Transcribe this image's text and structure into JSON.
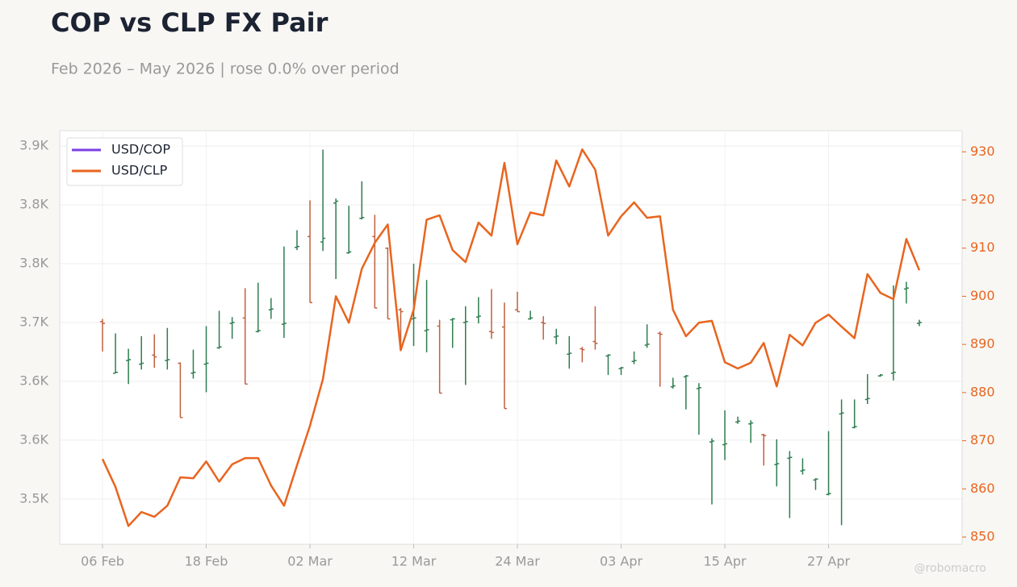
{
  "chart_data": {
    "type": "ohlc",
    "title": "COP vs CLP FX Pair",
    "subtitle": "Feb 2026 – May 2026 | rose 0.0% over period",
    "watermark": "@robomacro",
    "categories": [
      "06 Feb",
      null,
      null,
      null,
      null,
      null,
      null,
      null,
      "18 Feb",
      null,
      null,
      null,
      null,
      null,
      null,
      null,
      "02 Mar",
      null,
      null,
      null,
      null,
      null,
      null,
      null,
      "12 Mar",
      null,
      null,
      null,
      null,
      null,
      null,
      null,
      "24 Mar",
      null,
      null,
      null,
      null,
      null,
      null,
      null,
      "03 Apr",
      null,
      null,
      null,
      null,
      null,
      null,
      null,
      "15 Apr",
      null,
      null,
      null,
      null,
      null,
      null,
      null,
      "27 Apr",
      null,
      null,
      null,
      null,
      null,
      null,
      null
    ],
    "series": [
      {
        "name": "USD/COP",
        "type": "ohlc",
        "axis": "y",
        "color": "#7b3fe4",
        "up_color": "#2e7d4f",
        "down_color": "#c0603f",
        "open": [
          3696,
          3639,
          3653,
          3649,
          3659,
          3653,
          3650,
          3639,
          3649,
          3667,
          3694,
          3700,
          3685,
          3709,
          3693,
          3778,
          3790,
          3784,
          3827,
          3772,
          3810,
          3790,
          3777,
          3709,
          3699,
          3686,
          3691,
          3698,
          3695,
          3701,
          3685,
          3690,
          3709,
          3699,
          3695,
          3679,
          3660,
          3666,
          3674,
          3658,
          3644,
          3652,
          3670,
          3683,
          3624,
          3635,
          3622,
          3563,
          3560,
          3585,
          3583,
          3571,
          3538,
          3545,
          3531,
          3521,
          3505,
          3594,
          3579,
          3610,
          3636,
          3639,
          3732,
          3694
        ],
        "high": [
          3699,
          3683,
          3666,
          3680,
          3682,
          3689,
          3651,
          3665,
          3691,
          3708,
          3701,
          3733,
          3739,
          3722,
          3779,
          3797,
          3830,
          3886,
          3832,
          3824,
          3851,
          3814,
          3778,
          3711,
          3760,
          3742,
          3698,
          3700,
          3713,
          3723,
          3732,
          3717,
          3729,
          3708,
          3702,
          3688,
          3680,
          3668,
          3713,
          3660,
          3646,
          3663,
          3693,
          3685,
          3634,
          3637,
          3628,
          3567,
          3598,
          3591,
          3587,
          3572,
          3566,
          3553,
          3545,
          3523,
          3575,
          3610,
          3610,
          3638,
          3638,
          3736,
          3740,
          3698
        ],
        "low": [
          3663,
          3639,
          3627,
          3643,
          3645,
          3643,
          3590,
          3633,
          3618,
          3666,
          3677,
          3627,
          3684,
          3699,
          3678,
          3775,
          3717,
          3774,
          3743,
          3771,
          3809,
          3711,
          3699,
          3665,
          3669,
          3662,
          3617,
          3667,
          3626,
          3694,
          3677,
          3600,
          3707,
          3698,
          3676,
          3671,
          3644,
          3651,
          3665,
          3637,
          3637,
          3649,
          3667,
          3624,
          3622,
          3599,
          3571,
          3494,
          3543,
          3583,
          3562,
          3537,
          3514,
          3479,
          3527,
          3510,
          3504,
          3471,
          3578,
          3605,
          3635,
          3631,
          3716,
          3691
        ],
        "close": [
          3694,
          3640,
          3654,
          3650,
          3657,
          3654,
          3590,
          3640,
          3650,
          3668,
          3695,
          3627,
          3686,
          3710,
          3694,
          3779,
          3717,
          3788,
          3829,
          3773,
          3811,
          3711,
          3699,
          3707,
          3700,
          3687,
          3617,
          3699,
          3696,
          3702,
          3684,
          3600,
          3707,
          3700,
          3694,
          3680,
          3661,
          3665,
          3672,
          3659,
          3645,
          3653,
          3671,
          3682,
          3625,
          3636,
          3623,
          3564,
          3561,
          3586,
          3584,
          3570,
          3539,
          3546,
          3532,
          3522,
          3506,
          3595,
          3580,
          3611,
          3637,
          3640,
          3733,
          3695
        ]
      },
      {
        "name": "USD/CLP",
        "type": "line",
        "axis": "y2",
        "color": "#e8651f",
        "values": [
          866.2,
          860.4,
          852.3,
          855.2,
          854.2,
          856.5,
          862.4,
          862.2,
          865.7,
          861.5,
          865.1,
          866.4,
          866.4,
          860.7,
          856.5,
          864.9,
          873.1,
          882.8,
          900.0,
          894.5,
          905.7,
          911.1,
          914.9,
          888.8,
          897.2,
          915.9,
          916.8,
          909.6,
          907.1,
          915.3,
          912.6,
          927.7,
          910.8,
          917.4,
          916.8,
          928.2,
          922.8,
          930.5,
          926.3,
          912.6,
          916.6,
          919.5,
          916.3,
          916.6,
          897.2,
          891.7,
          894.5,
          894.9,
          886.3,
          885.0,
          886.2,
          890.3,
          881.3,
          892.0,
          889.8,
          894.5,
          896.2,
          893.7,
          891.3,
          904.6,
          900.7,
          899.4,
          911.9,
          905.4
        ]
      }
    ],
    "ylim": [
      3450,
      3907
    ],
    "yticks": [
      {
        "value": 3500,
        "label": "3.5K"
      },
      {
        "value": 3565,
        "label": "3.6K"
      },
      {
        "value": 3630,
        "label": "3.6K"
      },
      {
        "value": 3695,
        "label": "3.7K"
      },
      {
        "value": 3760,
        "label": "3.8K"
      },
      {
        "value": 3825,
        "label": "3.8K"
      },
      {
        "value": 3890,
        "label": "3.9K"
      }
    ],
    "y2lim": [
      848.5,
      934.4
    ],
    "y2ticks": [
      850,
      860,
      870,
      880,
      890,
      900,
      910,
      920,
      930
    ],
    "grid": true,
    "legend": "upper left"
  }
}
